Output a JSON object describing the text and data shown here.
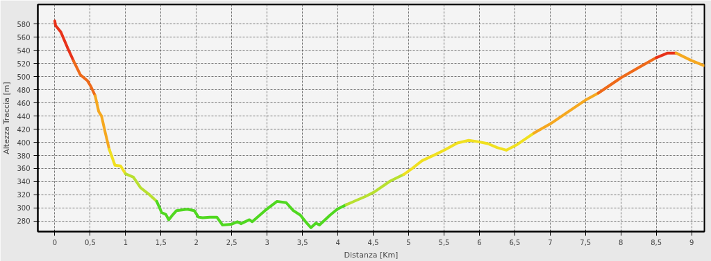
{
  "chart_data": {
    "type": "line",
    "xlabel": "Distanza [Km]",
    "ylabel": "Altezza Traccia [m]",
    "xlim": [
      -0.24,
      9.18
    ],
    "ylim": [
      264,
      610
    ],
    "xticks": [
      0,
      {
        "value": 0.5,
        "label": "0,5"
      },
      1,
      {
        "value": 1.5,
        "label": "1,5"
      },
      2,
      {
        "value": 2.5,
        "label": "2,5"
      },
      3,
      {
        "value": 3.5,
        "label": "3,5"
      },
      4,
      {
        "value": 4.5,
        "label": "4,5"
      },
      5,
      {
        "value": 5.5,
        "label": "5,5"
      },
      6,
      {
        "value": 6.5,
        "label": "6,5"
      },
      7,
      {
        "value": 7.5,
        "label": "7,5"
      },
      8,
      {
        "value": 8.5,
        "label": "8,5"
      },
      9
    ],
    "yticks": [
      280,
      300,
      320,
      340,
      360,
      380,
      400,
      420,
      440,
      460,
      480,
      500,
      520,
      540,
      560,
      580
    ],
    "grid": true,
    "marker": "none",
    "line_style": "solid",
    "series": [
      {
        "color": "#e8321a",
        "x": [
          0,
          0.01,
          0.085,
          0.18,
          0.265
        ],
        "values": [
          585,
          578,
          568,
          544,
          524
        ]
      },
      {
        "color": "#ee6a1a",
        "x": [
          0.265,
          0.36,
          0.46,
          0.51,
          0.57
        ],
        "values": [
          524,
          503,
          494,
          485,
          471
        ]
      },
      {
        "color": "#f5a820",
        "x": [
          0.57,
          0.62,
          0.66,
          0.71,
          0.77
        ],
        "values": [
          471,
          447,
          440,
          416,
          389
        ]
      },
      {
        "color": "#f0e020",
        "x": [
          0.77,
          0.85,
          0.93,
          1.0
        ],
        "values": [
          389,
          365,
          364,
          352
        ]
      },
      {
        "color": "#b8e030",
        "x": [
          1.0,
          1.11,
          1.21,
          1.34,
          1.44
        ],
        "values": [
          352,
          347,
          331,
          320,
          310
        ]
      },
      {
        "color": "#50d820",
        "x": [
          1.44,
          1.51,
          1.57,
          1.61,
          1.67,
          1.72,
          1.87,
          1.97,
          2.03,
          2.09,
          2.19,
          2.29,
          2.37,
          2.49,
          2.58,
          2.63,
          2.75,
          2.79,
          2.97,
          3.14,
          3.27,
          3.37,
          3.47,
          3.56,
          3.62,
          3.69,
          3.74,
          3.89,
          3.99,
          4.12
        ],
        "values": [
          310,
          293,
          290,
          282,
          290,
          296,
          298,
          296,
          286,
          285,
          286,
          286,
          274,
          275,
          279,
          276,
          282,
          279,
          296,
          310,
          308,
          296,
          289,
          277,
          270,
          277,
          274,
          289,
          298,
          305
        ]
      },
      {
        "color": "#b8e030",
        "x": [
          4.12,
          4.38,
          4.51,
          4.74,
          4.93
        ],
        "values": [
          305,
          317,
          324,
          341,
          351
        ]
      },
      {
        "color": "#f0e020",
        "x": [
          4.93,
          5.06,
          5.19,
          5.39,
          5.52,
          5.69,
          5.85,
          5.98,
          6.12,
          6.25,
          6.38,
          6.54,
          6.77
        ],
        "values": [
          351,
          361,
          372,
          382,
          389,
          399,
          403,
          401,
          398,
          392,
          388,
          397,
          414
        ]
      },
      {
        "color": "#f5a820",
        "x": [
          6.77,
          7.0,
          7.22,
          7.51,
          7.68
        ],
        "values": [
          414,
          428,
          444,
          465,
          475
        ]
      },
      {
        "color": "#ee6a1a",
        "x": [
          7.68,
          8.01,
          8.27,
          8.5
        ],
        "values": [
          475,
          499,
          515,
          529
        ]
      },
      {
        "color": "#e8321a",
        "x": [
          8.5,
          8.66,
          8.78
        ],
        "values": [
          529,
          536,
          536
        ]
      },
      {
        "color": "#f5a820",
        "x": [
          8.78,
          8.99,
          9.17
        ],
        "values": [
          536,
          525,
          517
        ]
      }
    ]
  }
}
